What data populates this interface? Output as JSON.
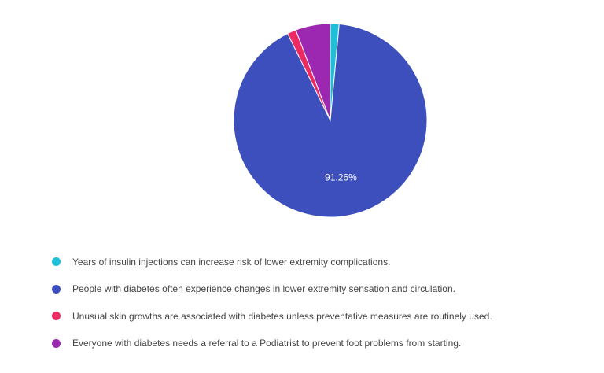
{
  "chart_data": {
    "type": "pie",
    "title": "",
    "legend_position": "bottom",
    "slices": [
      {
        "label": "Years of insulin injections can increase risk of lower extremity complications.",
        "value": 1.46,
        "color": "#1ec0d9",
        "data_label": ""
      },
      {
        "label": "People with diabetes often experience changes in lower extremity sensation and circulation.",
        "value": 91.26,
        "color": "#3d4fbd",
        "data_label": "91.26%"
      },
      {
        "label": "Unusual skin growths are associated with diabetes unless preventative measures are routinely used.",
        "value": 1.46,
        "color": "#ec2a63",
        "data_label": ""
      },
      {
        "label": "Everyone with diabetes needs a referral to a Podiatrist to prevent foot problems from starting.",
        "value": 5.82,
        "color": "#9c27b0",
        "data_label": ""
      }
    ]
  }
}
